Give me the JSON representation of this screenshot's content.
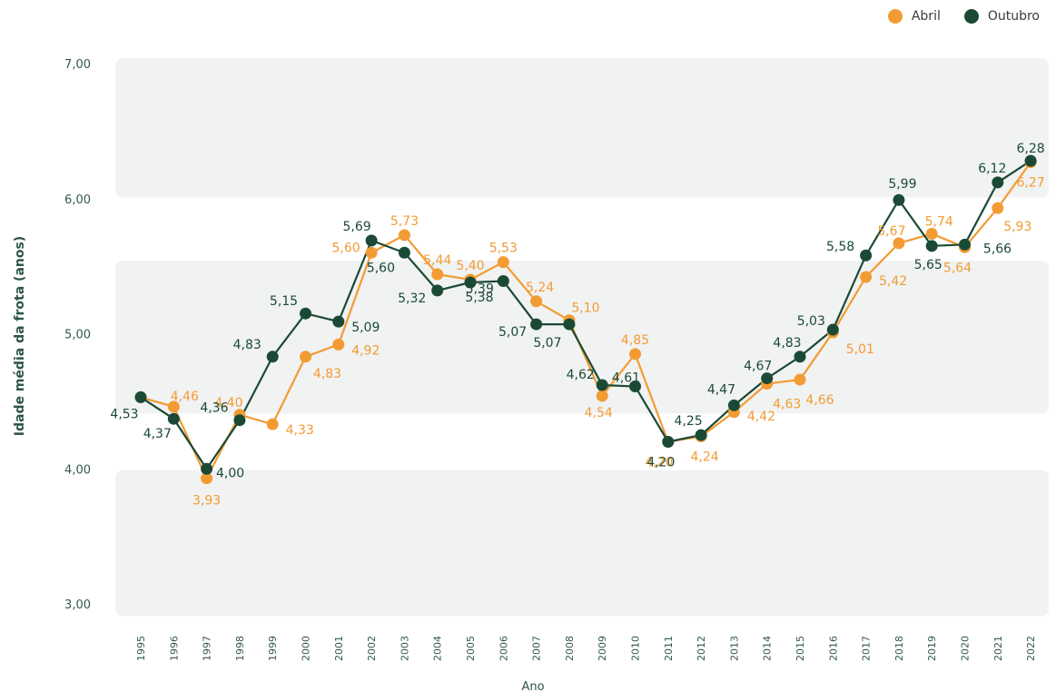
{
  "legend": {
    "abril_label": "Abril",
    "outubro_label": "Outubro"
  },
  "colors": {
    "abril": "#f39b33",
    "outubro": "#1a4a35",
    "band": "#f1f2f2"
  },
  "chart_data": {
    "type": "line",
    "title": "",
    "xlabel": "Ano",
    "ylabel": "Idade média da frota (anos)",
    "x": [
      "1995",
      "1996",
      "1997",
      "1998",
      "1999",
      "2000",
      "2001",
      "2002",
      "2003",
      "2004",
      "2005",
      "2006",
      "2007",
      "2008",
      "2009",
      "2010",
      "2011",
      "2012",
      "2013",
      "2014",
      "2015",
      "2016",
      "2017",
      "2018",
      "2019",
      "2020",
      "2021",
      "2022"
    ],
    "ylim": [
      3.0,
      7.0
    ],
    "yticks": [
      "3,00",
      "4,00",
      "5,00",
      "6,00",
      "7,00"
    ],
    "series": [
      {
        "name": "Abril",
        "values": [
          4.53,
          4.46,
          3.93,
          4.4,
          4.33,
          4.83,
          4.92,
          5.6,
          5.73,
          5.44,
          5.4,
          5.53,
          5.24,
          5.1,
          4.54,
          4.85,
          4.2,
          4.24,
          4.42,
          4.63,
          4.66,
          5.01,
          5.42,
          5.67,
          5.74,
          5.64,
          5.93,
          6.27
        ],
        "labels": [
          "",
          "4,46",
          "3,93",
          "4,40",
          "4,33",
          "4,83",
          "4,92",
          "5,60",
          "5,73",
          "5,44",
          "5,40",
          "5,53",
          "5,24",
          "5,10",
          "4,54",
          "4,85",
          "4,20",
          "4,24",
          "4,42",
          "4,63",
          "4,66",
          "5,01",
          "5,42",
          "5,67",
          "5,74",
          "5,64",
          "5,93",
          "6,27"
        ]
      },
      {
        "name": "Outubro",
        "values": [
          4.53,
          4.37,
          4.0,
          4.36,
          4.83,
          5.15,
          5.09,
          5.69,
          5.6,
          5.32,
          5.38,
          5.39,
          5.07,
          5.07,
          4.62,
          4.61,
          4.2,
          4.25,
          4.47,
          4.67,
          4.83,
          5.03,
          5.58,
          5.99,
          5.65,
          5.66,
          6.12,
          6.28
        ],
        "labels": [
          "4,53",
          "4,37",
          "4,00",
          "4,36",
          "4,83",
          "5,15",
          "5,09",
          "5,69",
          "5,60",
          "5,32",
          "5,38",
          "5,39",
          "5,07",
          "5,07",
          "4,62",
          "4,61",
          "4,20",
          "4,25",
          "4,47",
          "4,67",
          "4,83",
          "5,03",
          "5,58",
          "5,99",
          "5,65",
          "5,66",
          "6,12",
          "6,28"
        ]
      }
    ],
    "grid": "alternating horizontal bands",
    "legend_position": "top-right"
  }
}
